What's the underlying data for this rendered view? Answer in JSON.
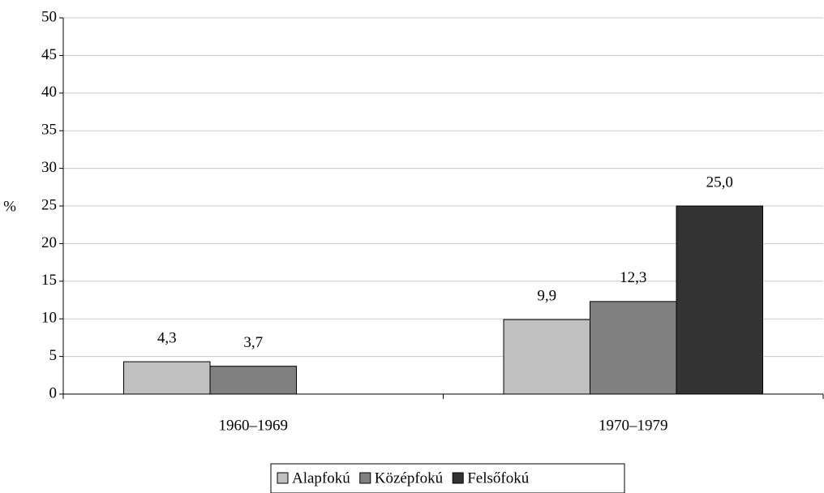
{
  "chart_data": {
    "type": "bar",
    "y_label": "%",
    "categories": [
      "1960–1969",
      "1970–1979"
    ],
    "series": [
      {
        "name": "Alapfokú",
        "color": "#c0c0c0",
        "values": [
          4.3,
          9.9
        ],
        "value_labels": [
          "4,3",
          "9,9"
        ]
      },
      {
        "name": "Középfokú",
        "color": "#808080",
        "values": [
          3.7,
          12.3
        ],
        "value_labels": [
          "3,7",
          "12,3"
        ]
      },
      {
        "name": "Felsőfokú",
        "color": "#333333",
        "values": [
          null,
          25.0
        ],
        "value_labels": [
          null,
          "25,0"
        ]
      }
    ],
    "ylim": [
      0,
      50
    ],
    "yticks": [
      0,
      5,
      10,
      15,
      20,
      25,
      30,
      35,
      40,
      45,
      50
    ],
    "grid": true,
    "legend": "bottom"
  }
}
